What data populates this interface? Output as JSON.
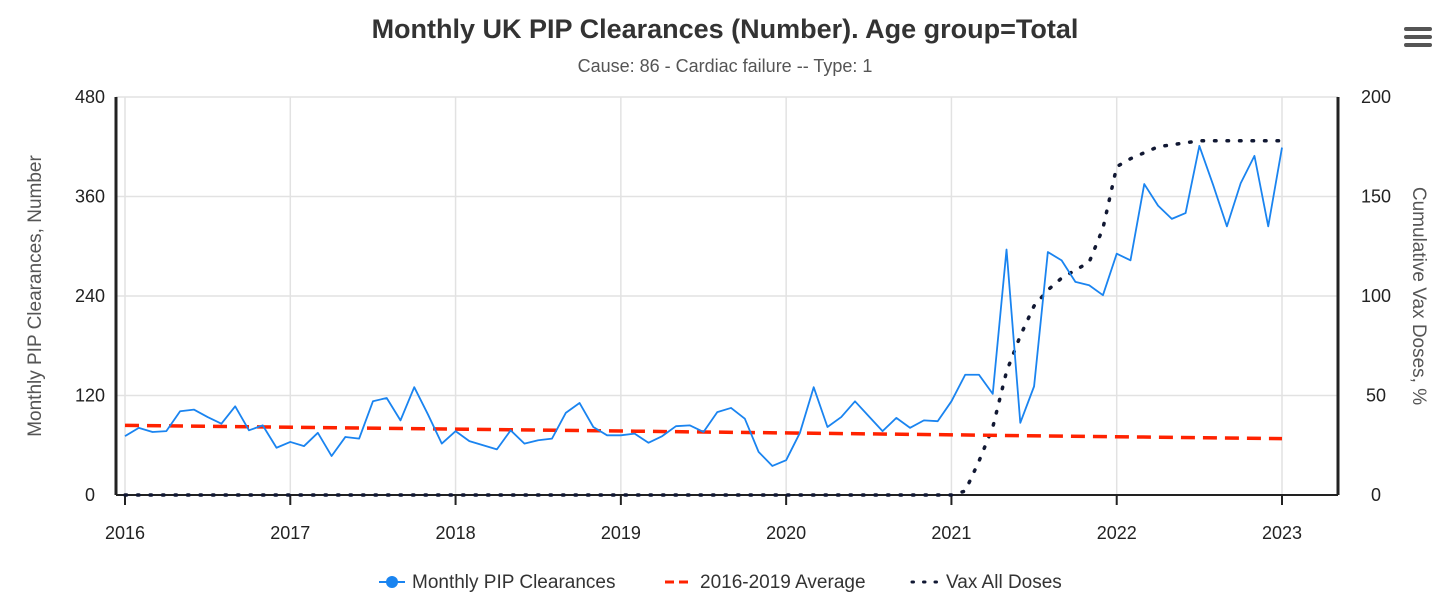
{
  "chart_data": {
    "type": "line",
    "title": "Monthly UK PIP Clearances (Number). Age group=Total",
    "subtitle": "Cause: 86 - Cardiac failure -- Type: 1",
    "ylabel": "Monthly PIP Clearances, Number",
    "y2label": "Cumulative Vax Doses, %",
    "ylim": [
      0,
      480
    ],
    "y2lim": [
      0,
      200
    ],
    "xlim": [
      2016,
      2023
    ],
    "x_ticks": [
      "2016",
      "2017",
      "2018",
      "2019",
      "2020",
      "2021",
      "2022",
      "2023"
    ],
    "y_ticks": [
      "0",
      "120",
      "240",
      "360",
      "480"
    ],
    "y2_ticks": [
      "0",
      "50",
      "100",
      "150",
      "200"
    ],
    "legend_position": "bottom-center",
    "grid": true,
    "x_start": "2016-01",
    "x_step": "month",
    "series": [
      {
        "name": "Monthly PIP Clearances",
        "color": "#1a84f0",
        "axis": "left",
        "values": [
          71,
          81,
          76,
          77,
          101,
          103,
          94,
          86,
          107,
          78,
          84,
          57,
          64,
          59,
          75,
          47,
          70,
          68,
          113,
          117,
          90,
          130,
          97,
          62,
          77,
          65,
          60,
          55,
          78,
          62,
          66,
          68,
          99,
          111,
          82,
          72,
          72,
          74,
          63,
          71,
          83,
          84,
          76,
          100,
          105,
          92,
          52,
          35,
          42,
          75,
          130,
          82,
          94,
          113,
          95,
          77,
          93,
          81,
          90,
          89,
          113,
          145,
          145,
          122,
          296,
          87,
          131,
          293,
          283,
          257,
          253,
          241,
          291,
          283,
          375,
          349,
          333,
          340,
          421,
          374,
          324,
          376,
          409,
          324,
          419
        ]
      },
      {
        "name": "2016-2019 Average",
        "color": "#ff2200",
        "axis": "left",
        "linear_from_to": [
          84,
          68
        ]
      },
      {
        "name": "Vax All Doses",
        "color": "#111833",
        "axis": "right",
        "start_index": 60,
        "values_before_start": 0,
        "values": [
          0,
          2,
          17,
          34,
          62,
          80,
          95,
          103,
          109,
          113,
          117,
          134,
          165,
          169,
          172,
          175,
          176,
          177,
          178,
          178,
          178,
          178,
          178,
          178,
          178
        ]
      }
    ]
  },
  "menu_icon": "hamburger-menu-icon"
}
